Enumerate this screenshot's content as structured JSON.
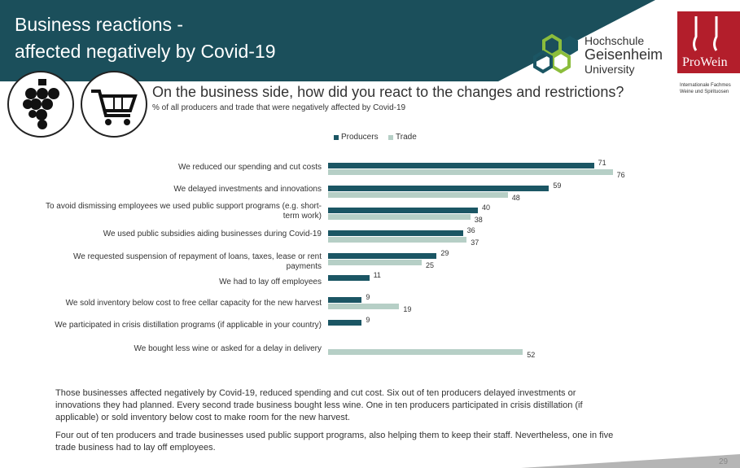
{
  "header": {
    "title_lines": [
      "Business reactions -",
      "affected negatively by Covid-19"
    ],
    "logo_university": [
      "Hochschule",
      "Geisenheim",
      "University"
    ],
    "logo_fair": "ProWein",
    "logo_fair_sub": [
      "Internationale Fachmes",
      "Weine und Spirituosen"
    ]
  },
  "chart_data": {
    "type": "bar",
    "orientation": "horizontal",
    "title": "On the business side, how did you react to the changes and restrictions?",
    "subtitle": "% of all producers and trade that were negatively affected by Covid-19",
    "categories": [
      "We reduced our spending and cut costs",
      "We delayed investments and innovations",
      "To avoid dismissing employees we used public support programs (e.g. short-term work)",
      "We used public subsidies aiding businesses during Covid-19",
      "We requested suspension of repayment of loans, taxes, lease or rent payments",
      "We had to lay off employees",
      "We sold inventory below cost to free cellar capacity for the new harvest",
      "We participated in crisis distillation programs (if applicable in your country)",
      "We bought less wine or asked for a delay in delivery"
    ],
    "series": [
      {
        "name": "Producers",
        "color": "#1b5664",
        "values": [
          71,
          59,
          40,
          36,
          29,
          11,
          9,
          9,
          null
        ]
      },
      {
        "name": "Trade",
        "color": "#b6cfc6",
        "values": [
          76,
          48,
          38,
          37,
          25,
          null,
          19,
          null,
          52
        ]
      }
    ]
  },
  "notes": [
    "Those businesses affected negatively by Covid-19, reduced spending and cut cost. Six out of ten producers delayed investments or innovations they had planned. Every second trade business bought less wine. One in ten producers participated in crisis distillation (if applicable) or sold inventory below cost to make room for the new harvest.",
    "Four out of ten producers and trade businesses used public support programs, also helping them to keep their staff. Nevertheless, one in five trade business had to lay off employees."
  ],
  "page_number": "29"
}
